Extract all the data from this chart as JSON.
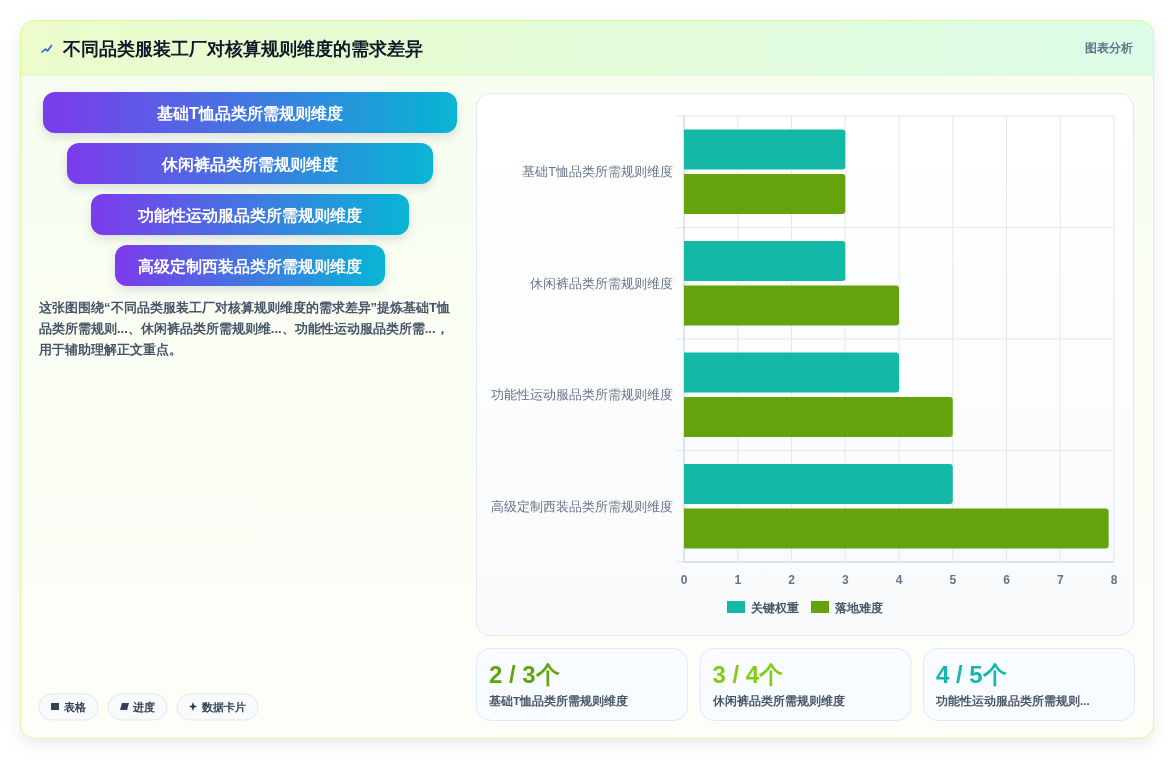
{
  "chart_data": [
    {
      "type": "other",
      "title": "不同品类服装工厂对核算规则维度的需求差异",
      "annotations": [
        "图表分析",
        "基础T恤品类所需规则维度",
        "休闲裤品类所需规则维度",
        "功能性运动服品类所需规则维度",
        "高级定制西装品类所需规则维度",
        "这张图围绕“不同品类服装工厂对核算规则维度的需求差异”提炼基础T恤品类所需规则...、休闲裤品类所需规则维...、功能性运动服品类所需...，用于辅助理解正文重点。",
        "表格",
        "进度",
        "数据卡片"
      ]
    },
    {
      "type": "bar",
      "orientation": "horizontal",
      "categories": [
        "基础T恤品类所需规则维度",
        "休闲裤品类所需规则维度",
        "功能性运动服品类所需规则维度",
        "高级定制西装品类所需规则维度"
      ],
      "series": [
        {
          "name": "关键权重",
          "color": "#14b8a6",
          "values": [
            3,
            3,
            4,
            5
          ]
        },
        {
          "name": "落地难度",
          "color": "#65a30d",
          "values": [
            3,
            4,
            5,
            7.9
          ]
        }
      ],
      "xlim": [
        0,
        8
      ],
      "xticks": [
        0,
        1,
        2,
        3,
        4,
        5,
        6,
        7,
        8
      ],
      "grid": true,
      "legend": "bottom"
    },
    {
      "type": "other",
      "annotations": [
        "2 / 3个",
        "基础T恤品类所需规则维度",
        "3 / 4个",
        "休闲裤品类所需规则维度",
        "4 / 5个",
        "功能性运动服品类所需规则..."
      ]
    }
  ]
}
